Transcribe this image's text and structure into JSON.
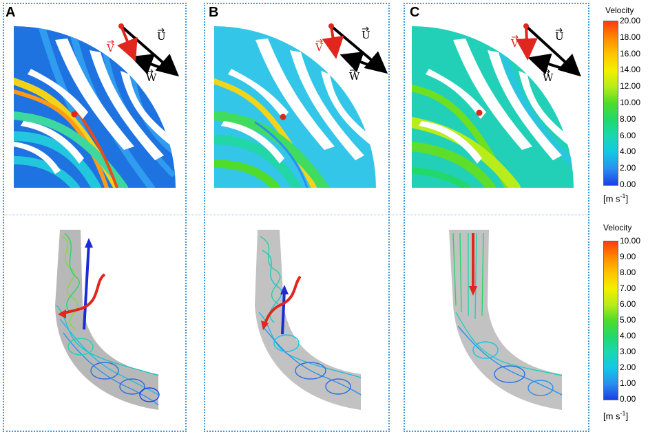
{
  "panels": [
    {
      "letter": "A"
    },
    {
      "letter": "B"
    },
    {
      "letter": "C"
    }
  ],
  "vectors": {
    "v": "V",
    "u": "U",
    "w": "W"
  },
  "legend_top": {
    "title": "Velocity",
    "ticks": [
      "20.00",
      "18.00",
      "16.00",
      "14.00",
      "12.00",
      "10.00",
      "8.00",
      "6.00",
      "4.00",
      "2.00",
      "0.00"
    ],
    "unit_base": "[m s",
    "unit_exp": "-1",
    "unit_close": "]"
  },
  "legend_bottom": {
    "title": "Velocity",
    "ticks": [
      "10.00",
      "9.00",
      "8.00",
      "7.00",
      "6.00",
      "5.00",
      "4.00",
      "3.00",
      "2.00",
      "1.00",
      "0.00"
    ],
    "unit_base": "[m s",
    "unit_exp": "-1",
    "unit_close": "]"
  },
  "colors": {
    "frame": "#3a9ad9",
    "arrow_red": "#e0261d",
    "arrow_blue": "#1b2bd6",
    "scale": [
      "#ff3b10",
      "#ff8a00",
      "#ffc400",
      "#f3f000",
      "#b8ec1a",
      "#4fdc2a",
      "#22d86a",
      "#19d8b0",
      "#12c8e6",
      "#2a8ff0",
      "#1a3fe6"
    ]
  }
}
